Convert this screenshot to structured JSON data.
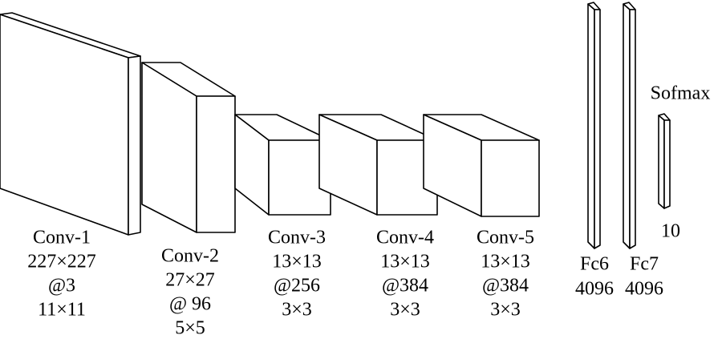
{
  "layers": [
    {
      "name": "Conv-1",
      "size": "227×227",
      "channels": "@3",
      "kernel": "11×11"
    },
    {
      "name": "Conv-2",
      "size": "27×27",
      "channels": "@ 96",
      "kernel": "5×5"
    },
    {
      "name": "Conv-3",
      "size": "13×13",
      "channels": "@256",
      "kernel": "3×3"
    },
    {
      "name": "Conv-4",
      "size": "13×13",
      "channels": "@384",
      "kernel": "3×3"
    },
    {
      "name": "Conv-5",
      "size": "13×13",
      "channels": "@384",
      "kernel": "3×3"
    }
  ],
  "fc": [
    {
      "name": "Fc6",
      "units": "4096"
    },
    {
      "name": "Fc7",
      "units": "4096"
    }
  ],
  "softmax": {
    "name": "Sofmax",
    "units": "10"
  }
}
